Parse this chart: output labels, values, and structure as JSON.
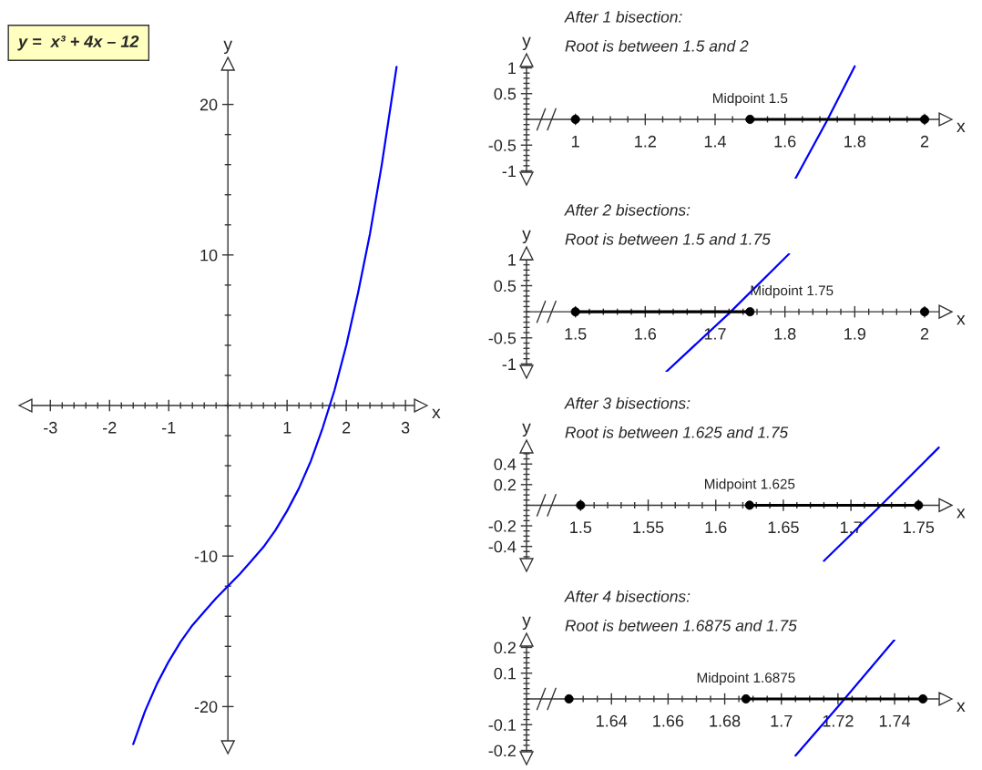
{
  "chart_data": [
    {
      "type": "line",
      "title": "y =  x³ + 4x – 12",
      "xlabel": "x",
      "ylabel": "y",
      "xlim": [
        -3.42,
        3.26
      ],
      "ylim": [
        -22.7,
        22.7
      ],
      "xticks": [
        -3,
        {
          "value": -2.8,
          "label": null
        },
        {
          "value": -2.6,
          "label": null
        },
        {
          "value": -2.4,
          "label": null
        },
        {
          "value": -2.2,
          "label": null
        },
        -2,
        {
          "value": -1.8,
          "label": null
        },
        {
          "value": -1.6,
          "label": null
        },
        {
          "value": -1.4,
          "label": null
        },
        {
          "value": -1.2,
          "label": null
        },
        -1,
        {
          "value": -0.8,
          "label": null
        },
        {
          "value": -0.6,
          "label": null
        },
        {
          "value": -0.4,
          "label": null
        },
        {
          "value": -0.2,
          "label": null
        },
        {
          "value": 0,
          "label": null
        },
        {
          "value": 0.2,
          "label": null
        },
        {
          "value": 0.4,
          "label": null
        },
        {
          "value": 0.6,
          "label": null
        },
        {
          "value": 0.8,
          "label": null
        },
        1,
        {
          "value": 1.2,
          "label": null
        },
        {
          "value": 1.4,
          "label": null
        },
        {
          "value": 1.6,
          "label": null
        },
        {
          "value": 1.8,
          "label": null
        },
        2,
        {
          "value": 2.2,
          "label": null
        },
        {
          "value": 2.4,
          "label": null
        },
        {
          "value": 2.6,
          "label": null
        },
        {
          "value": 2.8,
          "label": null
        },
        3
      ],
      "yticks": [
        -20,
        {
          "value": -18,
          "label": null
        },
        {
          "value": -16,
          "label": null
        },
        {
          "value": -14,
          "label": null
        },
        {
          "value": -12,
          "label": null
        },
        -10,
        {
          "value": -8,
          "label": null
        },
        {
          "value": -6,
          "label": null
        },
        {
          "value": -4,
          "label": null
        },
        {
          "value": -2,
          "label": null
        },
        {
          "value": 0,
          "label": null
        },
        {
          "value": 2,
          "label": null
        },
        {
          "value": 4,
          "label": null
        },
        {
          "value": 6,
          "label": null
        },
        {
          "value": 8,
          "label": null
        },
        10,
        {
          "value": 12,
          "label": null
        },
        {
          "value": 14,
          "label": null
        },
        {
          "value": 16,
          "label": null
        },
        {
          "value": 18,
          "label": null
        },
        20
      ],
      "series": [
        {
          "color": "#0000ff",
          "x": [
            -1.6,
            -1.4,
            -1.2,
            -1.0,
            -0.8,
            -0.6,
            -0.4,
            -0.2,
            0,
            0.2,
            0.4,
            0.6,
            0.8,
            1.0,
            1.2,
            1.4,
            1.6,
            1.8,
            2.0,
            2.2,
            2.4,
            2.6,
            2.8,
            2.85
          ],
          "values": [
            -22.5,
            -20.3,
            -18.5,
            -17.0,
            -15.7,
            -14.6,
            -13.7,
            -12.8,
            -12.0,
            -11.2,
            -10.3,
            -9.4,
            -8.3,
            -7.0,
            -5.5,
            -3.7,
            -1.5,
            1.0,
            4.0,
            7.5,
            11.4,
            16.0,
            21.2,
            22.5
          ]
        }
      ]
    },
    {
      "type": "line",
      "title": "After 1 bisection:",
      "subtitle": "Root is between 1.5 and 2",
      "xlabel": "x",
      "ylabel": "y",
      "xlim": [
        0.86,
        2.06
      ],
      "ylim": [
        -1.15,
        1.15
      ],
      "xticks": [
        1,
        {
          "value": 1.05,
          "label": null
        },
        {
          "value": 1.1,
          "label": null
        },
        {
          "value": 1.15,
          "label": null
        },
        1.2,
        {
          "value": 1.25,
          "label": null
        },
        {
          "value": 1.3,
          "label": null
        },
        {
          "value": 1.35,
          "label": null
        },
        1.4,
        {
          "value": 1.45,
          "label": null
        },
        {
          "value": 1.5,
          "label": null
        },
        {
          "value": 1.55,
          "label": null
        },
        1.6,
        {
          "value": 1.65,
          "label": null
        },
        {
          "value": 1.7,
          "label": null
        },
        {
          "value": 1.75,
          "label": null
        },
        1.8,
        {
          "value": 1.85,
          "label": null
        },
        {
          "value": 1.9,
          "label": null
        },
        {
          "value": 1.95,
          "label": null
        },
        2
      ],
      "yticks": [
        -1,
        {
          "value": -0.9,
          "label": null
        },
        {
          "value": -0.8,
          "label": null
        },
        {
          "value": -0.7,
          "label": null
        },
        {
          "value": -0.6,
          "label": null
        },
        -0.5,
        {
          "value": -0.4,
          "label": null
        },
        {
          "value": -0.3,
          "label": null
        },
        {
          "value": -0.2,
          "label": null
        },
        {
          "value": -0.1,
          "label": null
        },
        {
          "value": 0,
          "label": null
        },
        {
          "value": 0.1,
          "label": null
        },
        {
          "value": 0.2,
          "label": null
        },
        {
          "value": 0.3,
          "label": null
        },
        {
          "value": 0.4,
          "label": null
        },
        0.5,
        {
          "value": 0.6,
          "label": null
        },
        {
          "value": 0.7,
          "label": null
        },
        {
          "value": 0.8,
          "label": null
        },
        {
          "value": 0.9,
          "label": null
        },
        1
      ],
      "annotations": [
        {
          "text": "Midpoint 1.5",
          "x": 1.5,
          "y": 0
        }
      ],
      "series": [
        {
          "color": "#0000ff",
          "x": [
            1.63,
            1.72,
            1.8
          ],
          "values": [
            -1.15,
            -0.03,
            1.03
          ]
        },
        {
          "color": "#000000",
          "x": [
            1.5,
            2
          ],
          "values": [
            0,
            0
          ]
        },
        {
          "type": "scatter",
          "marker": "circle",
          "color": "#000000",
          "x": [
            1,
            1.5,
            2
          ],
          "values": [
            0,
            0,
            0
          ]
        }
      ]
    },
    {
      "type": "line",
      "title": "After 2 bisections:",
      "subtitle": "Root is between 1.5 and 1.75",
      "xlabel": "x",
      "ylabel": "y",
      "xlim": [
        1.43,
        2.03
      ],
      "ylim": [
        -1.15,
        1.12
      ],
      "xticks": [
        1.5,
        {
          "value": 1.52,
          "label": null
        },
        {
          "value": 1.54,
          "label": null
        },
        {
          "value": 1.56,
          "label": null
        },
        {
          "value": 1.58,
          "label": null
        },
        1.6,
        {
          "value": 1.62,
          "label": null
        },
        {
          "value": 1.64,
          "label": null
        },
        {
          "value": 1.66,
          "label": null
        },
        {
          "value": 1.68,
          "label": null
        },
        1.7,
        {
          "value": 1.72,
          "label": null
        },
        {
          "value": 1.74,
          "label": null
        },
        {
          "value": 1.76,
          "label": null
        },
        {
          "value": 1.78,
          "label": null
        },
        1.8,
        {
          "value": 1.82,
          "label": null
        },
        {
          "value": 1.84,
          "label": null
        },
        {
          "value": 1.86,
          "label": null
        },
        {
          "value": 1.88,
          "label": null
        },
        1.9,
        {
          "value": 1.92,
          "label": null
        },
        {
          "value": 1.94,
          "label": null
        },
        {
          "value": 1.96,
          "label": null
        },
        {
          "value": 1.98,
          "label": null
        },
        2
      ],
      "yticks": [
        -1,
        {
          "value": -0.9,
          "label": null
        },
        {
          "value": -0.8,
          "label": null
        },
        {
          "value": -0.7,
          "label": null
        },
        {
          "value": -0.6,
          "label": null
        },
        -0.5,
        {
          "value": -0.4,
          "label": null
        },
        {
          "value": -0.3,
          "label": null
        },
        {
          "value": -0.2,
          "label": null
        },
        {
          "value": -0.1,
          "label": null
        },
        {
          "value": 0,
          "label": null
        },
        {
          "value": 0.1,
          "label": null
        },
        {
          "value": 0.2,
          "label": null
        },
        {
          "value": 0.3,
          "label": null
        },
        {
          "value": 0.4,
          "label": null
        },
        0.5,
        {
          "value": 0.6,
          "label": null
        },
        {
          "value": 0.7,
          "label": null
        },
        {
          "value": 0.8,
          "label": null
        },
        {
          "value": 0.9,
          "label": null
        },
        1
      ],
      "annotations": [
        {
          "text": "Midpoint 1.75",
          "x": 1.75,
          "y": 0
        }
      ],
      "series": [
        {
          "color": "#0000ff",
          "x": [
            1.63,
            1.72,
            1.806
          ],
          "values": [
            -1.15,
            -0.03,
            1.11
          ]
        },
        {
          "color": "#000000",
          "x": [
            1.5,
            1.75
          ],
          "values": [
            0,
            0
          ]
        },
        {
          "type": "scatter",
          "marker": "circle",
          "color": "#000000",
          "x": [
            1.5,
            1.75,
            2
          ],
          "values": [
            0,
            0,
            0
          ]
        }
      ]
    },
    {
      "type": "line",
      "title": "After 3 bisections:",
      "subtitle": "Root is between 1.625 and 1.75",
      "xlabel": "x",
      "ylabel": "y",
      "xlim": [
        1.46,
        1.77
      ],
      "ylim": [
        -0.58,
        0.57
      ],
      "xticks": [
        1.5,
        {
          "value": 1.51,
          "label": null
        },
        {
          "value": 1.52,
          "label": null
        },
        {
          "value": 1.53,
          "label": null
        },
        {
          "value": 1.54,
          "label": null
        },
        1.55,
        {
          "value": 1.56,
          "label": null
        },
        {
          "value": 1.57,
          "label": null
        },
        {
          "value": 1.58,
          "label": null
        },
        {
          "value": 1.59,
          "label": null
        },
        1.6,
        {
          "value": 1.61,
          "label": null
        },
        {
          "value": 1.62,
          "label": null
        },
        {
          "value": 1.63,
          "label": null
        },
        {
          "value": 1.64,
          "label": null
        },
        1.65,
        {
          "value": 1.66,
          "label": null
        },
        {
          "value": 1.67,
          "label": null
        },
        {
          "value": 1.68,
          "label": null
        },
        {
          "value": 1.69,
          "label": null
        },
        1.7,
        {
          "value": 1.71,
          "label": null
        },
        {
          "value": 1.72,
          "label": null
        },
        {
          "value": 1.73,
          "label": null
        },
        {
          "value": 1.74,
          "label": null
        },
        1.75
      ],
      "yticks": [
        {
          "value": -0.5,
          "label": null
        },
        {
          "value": -0.45,
          "label": null
        },
        -0.4,
        {
          "value": -0.35,
          "label": null
        },
        {
          "value": -0.3,
          "label": null
        },
        {
          "value": -0.25,
          "label": null
        },
        -0.2,
        {
          "value": -0.15,
          "label": null
        },
        {
          "value": -0.1,
          "label": null
        },
        {
          "value": -0.05,
          "label": null
        },
        {
          "value": 0,
          "label": null
        },
        {
          "value": 0.05,
          "label": null
        },
        {
          "value": 0.1,
          "label": null
        },
        {
          "value": 0.15,
          "label": null
        },
        0.2,
        {
          "value": 0.25,
          "label": null
        },
        {
          "value": 0.3,
          "label": null
        },
        {
          "value": 0.35,
          "label": null
        },
        0.4,
        {
          "value": 0.45,
          "label": null
        },
        {
          "value": 0.5,
          "label": null
        }
      ],
      "annotations": [
        {
          "text": "Midpoint 1.625",
          "x": 1.625,
          "y": 0
        }
      ],
      "series": [
        {
          "color": "#0000ff",
          "x": [
            1.68,
            1.72,
            1.765
          ],
          "values": [
            -0.54,
            -0.03,
            0.56
          ]
        },
        {
          "color": "#000000",
          "x": [
            1.625,
            1.75
          ],
          "values": [
            0,
            0
          ]
        },
        {
          "type": "scatter",
          "marker": "circle",
          "color": "#000000",
          "x": [
            1.5,
            1.625,
            1.75
          ],
          "values": [
            0,
            0,
            0
          ]
        }
      ]
    },
    {
      "type": "line",
      "title": "After 4 bisections:",
      "subtitle": "Root is between 1.6875 and 1.75",
      "xlabel": "x",
      "ylabel": "y",
      "xlim": [
        1.61,
        1.758
      ],
      "ylim": [
        -0.23,
        0.23
      ],
      "xticks": [
        {
          "value": 1.63,
          "label": null
        },
        {
          "value": 1.635,
          "label": null
        },
        1.64,
        {
          "value": 1.645,
          "label": null
        },
        {
          "value": 1.65,
          "label": null
        },
        {
          "value": 1.655,
          "label": null
        },
        1.66,
        {
          "value": 1.665,
          "label": null
        },
        {
          "value": 1.67,
          "label": null
        },
        {
          "value": 1.675,
          "label": null
        },
        1.68,
        {
          "value": 1.685,
          "label": null
        },
        {
          "value": 1.69,
          "label": null
        },
        {
          "value": 1.695,
          "label": null
        },
        1.7,
        {
          "value": 1.705,
          "label": null
        },
        {
          "value": 1.71,
          "label": null
        },
        {
          "value": 1.715,
          "label": null
        },
        1.72,
        {
          "value": 1.725,
          "label": null
        },
        {
          "value": 1.73,
          "label": null
        },
        {
          "value": 1.735,
          "label": null
        },
        1.74,
        {
          "value": 1.745,
          "label": null
        }
      ],
      "yticks": [
        -0.2,
        {
          "value": -0.18,
          "label": null
        },
        {
          "value": -0.16,
          "label": null
        },
        {
          "value": -0.14,
          "label": null
        },
        {
          "value": -0.12,
          "label": null
        },
        -0.1,
        {
          "value": -0.08,
          "label": null
        },
        {
          "value": -0.06,
          "label": null
        },
        {
          "value": -0.04,
          "label": null
        },
        {
          "value": -0.02,
          "label": null
        },
        {
          "value": 0,
          "label": null
        },
        {
          "value": 0.02,
          "label": null
        },
        {
          "value": 0.04,
          "label": null
        },
        {
          "value": 0.06,
          "label": null
        },
        {
          "value": 0.08,
          "label": null
        },
        0.1,
        {
          "value": 0.12,
          "label": null
        },
        {
          "value": 0.14,
          "label": null
        },
        {
          "value": 0.16,
          "label": null
        },
        {
          "value": 0.18,
          "label": null
        },
        0.2
      ],
      "annotations": [
        {
          "text": "Midpoint 1.6875",
          "x": 1.6875,
          "y": 0
        }
      ],
      "series": [
        {
          "color": "#0000ff",
          "x": [
            1.705,
            1.72,
            1.74
          ],
          "values": [
            -0.22,
            -0.03,
            0.23
          ]
        },
        {
          "color": "#000000",
          "x": [
            1.6875,
            1.75
          ],
          "values": [
            0,
            0
          ]
        },
        {
          "type": "scatter",
          "marker": "circle",
          "color": "#000000",
          "x": [
            1.625,
            1.6875,
            1.75
          ],
          "values": [
            0,
            0,
            0
          ]
        }
      ]
    }
  ]
}
